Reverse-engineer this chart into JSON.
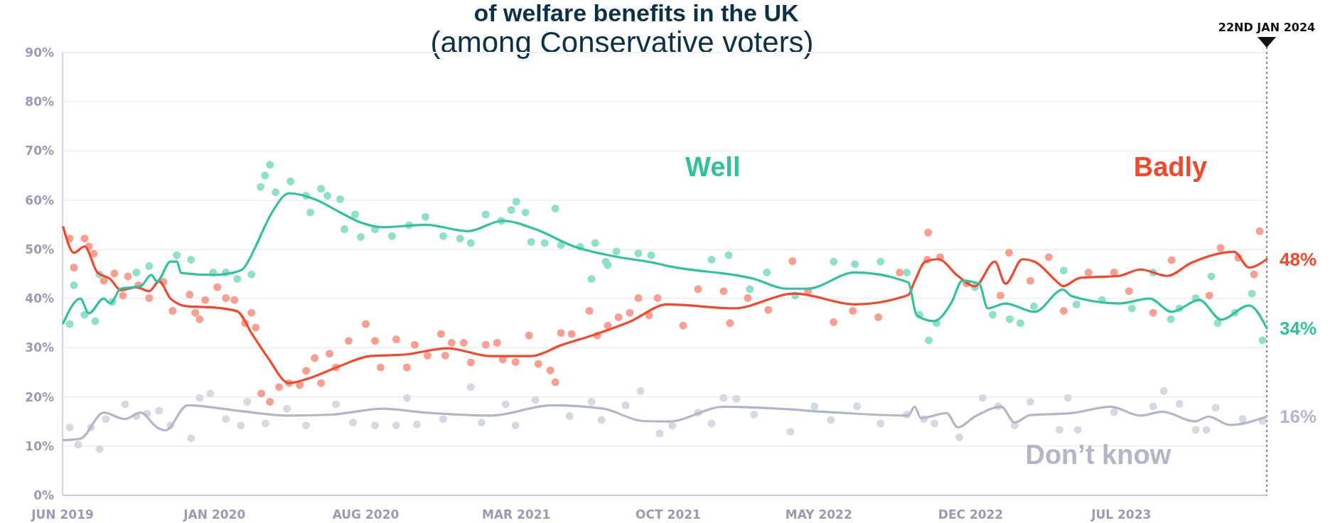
{
  "chart_data": {
    "type": "line",
    "title": "of welfare benefits in the UK",
    "subtitle": "(among Conservative voters)",
    "xlim": [
      "2019-06-01",
      "2024-01-22"
    ],
    "xticks": [
      {
        "value": "2019-06-01",
        "label": "JUN 2019"
      },
      {
        "value": "2020-01-01",
        "label": "JAN 2020"
      },
      {
        "value": "2020-08-01",
        "label": "AUG 2020"
      },
      {
        "value": "2021-03-01",
        "label": "MAR 2021"
      },
      {
        "value": "2021-10-01",
        "label": "OCT 2021"
      },
      {
        "value": "2022-05-01",
        "label": "MAY 2022"
      },
      {
        "value": "2022-12-01",
        "label": "DEC 2022"
      },
      {
        "value": "2023-07-01",
        "label": "JUL 2023"
      }
    ],
    "ylim": [
      0,
      90
    ],
    "yticks": [
      {
        "value": 0,
        "label": "0%"
      },
      {
        "value": 10,
        "label": "10%"
      },
      {
        "value": 20,
        "label": "20%"
      },
      {
        "value": 30,
        "label": "30%"
      },
      {
        "value": 40,
        "label": "40%"
      },
      {
        "value": 50,
        "label": "50%"
      },
      {
        "value": 60,
        "label": "60%"
      },
      {
        "value": 70,
        "label": "70%"
      },
      {
        "value": 80,
        "label": "80%"
      },
      {
        "value": 90,
        "label": "90%"
      }
    ],
    "grid": "y",
    "ref_lines": [
      {
        "axis": "x",
        "value": "2024-01-22",
        "label": "22ND JAN 2024",
        "color": "#5a5a70",
        "line_style": "dotted"
      }
    ],
    "annotations": [
      {
        "text": "48%",
        "x": "2024-01-22",
        "y": 48
      },
      {
        "text": "34%",
        "x": "2024-01-22",
        "y": 34
      },
      {
        "text": "16%",
        "x": "2024-01-22",
        "y": 16
      }
    ],
    "series": [
      {
        "type": "scatter",
        "marker": "circle",
        "color": "#d6d9e2",
        "x": [
          "2019-06-11",
          "2019-06-23",
          "2019-07-23",
          "2019-07-11",
          "2019-08-01",
          "2019-08-28",
          "2019-09-13",
          "2019-09-28",
          "2019-10-15",
          "2019-10-31",
          "2019-11-29",
          "2019-12-11",
          "2019-12-26",
          "2020-01-17",
          "2020-02-07",
          "2020-02-16",
          "2020-03-13",
          "2020-04-12",
          "2020-05-09",
          "2020-06-20",
          "2020-07-14",
          "2020-08-14",
          "2020-09-13",
          "2020-09-28",
          "2020-10-12",
          "2020-11-18",
          "2020-12-27",
          "2021-01-11",
          "2021-02-14",
          "2021-02-28",
          "2021-03-28",
          "2021-05-15",
          "2021-06-15",
          "2021-06-29",
          "2021-08-02",
          "2021-08-23",
          "2021-09-19",
          "2021-10-07",
          "2021-11-12",
          "2021-12-01",
          "2021-12-18",
          "2022-01-05",
          "2022-01-30",
          "2022-03-22",
          "2022-04-25",
          "2022-05-18",
          "2022-06-24",
          "2022-07-27",
          "2022-09-02",
          "2022-09-26",
          "2022-10-11",
          "2022-11-15",
          "2022-12-18",
          "2023-01-09",
          "2023-02-01",
          "2023-02-23",
          "2023-04-05",
          "2023-04-17",
          "2023-05-01",
          "2023-06-21",
          "2023-08-15",
          "2023-08-30",
          "2023-09-21",
          "2023-10-14",
          "2023-10-29",
          "2023-11-11",
          "2023-12-19",
          "2024-01-16"
        ],
        "values": [
          13.8,
          10.3,
          9.4,
          13.8,
          15.5,
          18.5,
          16.1,
          16.6,
          17.2,
          14.2,
          11.6,
          19.8,
          20.7,
          15.5,
          14.2,
          19,
          14.6,
          17.6,
          14.2,
          18.5,
          14.8,
          14.2,
          14.2,
          19.8,
          14.4,
          15.5,
          22,
          14.8,
          18.5,
          14.2,
          19.4,
          16.1,
          19,
          15.3,
          18.3,
          21.2,
          12.6,
          14.2,
          16.8,
          14.6,
          19.8,
          19.6,
          16.4,
          12.9,
          18.1,
          15.3,
          18.1,
          14.6,
          16.4,
          15.5,
          14.6,
          11.8,
          19.8,
          18.1,
          14.2,
          19,
          13.3,
          19.8,
          13.3,
          16.9,
          18.1,
          21.2,
          18.6,
          13.3,
          13.3,
          17.8,
          15.5,
          15.1
        ]
      },
      {
        "type": "scatter",
        "marker": "circle",
        "color": "#f7a092",
        "x": [
          "2019-06-11",
          "2019-06-17",
          "2019-07-02",
          "2019-07-08",
          "2019-07-15",
          "2019-07-29",
          "2019-08-13",
          "2019-08-25",
          "2019-09-01",
          "2019-09-16",
          "2019-10-01",
          "2019-10-21",
          "2019-11-03",
          "2019-11-27",
          "2019-12-05",
          "2019-12-11",
          "2019-12-19",
          "2020-01-05",
          "2020-01-17",
          "2020-01-29",
          "2020-02-13",
          "2020-02-22",
          "2020-02-28",
          "2020-03-07",
          "2020-03-19",
          "2020-04-01",
          "2020-04-15",
          "2020-04-30",
          "2020-05-09",
          "2020-05-21",
          "2020-05-30",
          "2020-06-11",
          "2020-06-20",
          "2020-07-08",
          "2020-08-01",
          "2020-08-14",
          "2020-08-22",
          "2020-09-13",
          "2020-09-28",
          "2020-10-09",
          "2020-10-27",
          "2020-11-15",
          "2020-11-21",
          "2020-11-30",
          "2020-12-17",
          "2020-12-27",
          "2021-01-17",
          "2021-02-02",
          "2021-02-10",
          "2021-02-28",
          "2021-03-19",
          "2021-04-01",
          "2021-04-18",
          "2021-04-25",
          "2021-05-03",
          "2021-05-18",
          "2021-06-12",
          "2021-06-23",
          "2021-07-08",
          "2021-07-23",
          "2021-08-08",
          "2021-08-20",
          "2021-09-04",
          "2021-09-16",
          "2021-10-22",
          "2021-11-12",
          "2021-12-18",
          "2021-12-27",
          "2022-01-21",
          "2022-02-19",
          "2022-03-25",
          "2022-04-16",
          "2022-05-22",
          "2022-06-18",
          "2022-07-24",
          "2022-08-23",
          "2022-10-01",
          "2022-10-02",
          "2022-10-19",
          "2022-11-25",
          "2023-01-12",
          "2023-01-24",
          "2023-02-23",
          "2023-03-21",
          "2023-04-11",
          "2023-05-16",
          "2023-06-21",
          "2023-07-12",
          "2023-08-15",
          "2023-09-10",
          "2023-11-02",
          "2023-11-18",
          "2023-12-13",
          "2024-01-04",
          "2024-01-12"
        ],
        "values": [
          52.2,
          46.3,
          52.2,
          50.6,
          49.1,
          43.6,
          45.1,
          40.6,
          44.5,
          42.7,
          40.1,
          43.4,
          37.5,
          40.8,
          37.1,
          35.8,
          39.7,
          42.3,
          40.1,
          39.7,
          35,
          37.1,
          34.1,
          20.7,
          19,
          22,
          22.8,
          22.4,
          25.3,
          27.9,
          22.8,
          28.8,
          26,
          31.4,
          34.8,
          31.4,
          26,
          31.7,
          26,
          30.6,
          28.4,
          32.8,
          28.4,
          31,
          31,
          27,
          30.6,
          31,
          27.6,
          27.1,
          32.5,
          26.7,
          25.4,
          23,
          33,
          32.8,
          37.5,
          32.5,
          34.5,
          36.2,
          37.1,
          40.1,
          36.6,
          40.1,
          34.5,
          41.9,
          41.5,
          35,
          40.1,
          37.7,
          47.6,
          41.5,
          35.2,
          37.5,
          36.2,
          45.3,
          47.9,
          53.4,
          48.4,
          43.1,
          40.6,
          49.3,
          43.6,
          48.4,
          37.5,
          45.3,
          45.3,
          41.5,
          37.1,
          47.8,
          40.6,
          50.3,
          48.3,
          44.9,
          53.7
        ]
      },
      {
        "type": "scatter",
        "marker": "circle",
        "color": "#8fe0c9",
        "x": [
          "2019-06-11",
          "2019-06-17",
          "2019-07-02",
          "2019-07-17",
          "2019-07-23",
          "2019-08-10",
          "2019-09-13",
          "2019-10-01",
          "2019-11-09",
          "2019-11-29",
          "2019-12-30",
          "2020-01-17",
          "2020-02-02",
          "2020-02-22",
          "2020-03-06",
          "2020-03-12",
          "2020-03-19",
          "2020-03-27",
          "2020-04-17",
          "2020-05-09",
          "2020-05-15",
          "2020-05-30",
          "2020-06-08",
          "2020-06-26",
          "2020-07-02",
          "2020-07-17",
          "2020-07-25",
          "2020-08-14",
          "2020-09-07",
          "2020-10-01",
          "2020-10-24",
          "2020-11-18",
          "2020-12-12",
          "2020-12-27",
          "2021-01-17",
          "2021-02-08",
          "2021-02-22",
          "2021-03-01",
          "2021-03-14",
          "2021-03-22",
          "2021-04-10",
          "2021-04-25",
          "2021-05-03",
          "2021-05-30",
          "2021-06-15",
          "2021-06-20",
          "2021-07-05",
          "2021-07-08",
          "2021-07-20",
          "2021-08-20",
          "2021-09-07",
          "2021-12-01",
          "2021-12-25",
          "2022-01-24",
          "2022-02-17",
          "2022-03-29",
          "2022-05-22",
          "2022-06-21",
          "2022-07-27",
          "2022-09-02",
          "2022-09-20",
          "2022-10-03",
          "2022-10-14",
          "2022-12-07",
          "2023-01-01",
          "2023-01-25",
          "2023-02-09",
          "2023-02-28",
          "2023-04-11",
          "2023-04-29",
          "2023-06-04",
          "2023-07-16",
          "2023-08-15",
          "2023-09-09",
          "2023-09-21",
          "2023-10-14",
          "2023-11-05",
          "2023-11-14",
          "2023-12-08",
          "2024-01-01",
          "2024-01-16"
        ],
        "values": [
          34.8,
          42.7,
          36.7,
          35.4,
          44.9,
          39.3,
          45.3,
          46.6,
          48.8,
          47.9,
          45.3,
          45.3,
          44,
          44.9,
          62.7,
          65,
          67.2,
          61.6,
          63.8,
          60.9,
          57.5,
          62.3,
          60.9,
          60.2,
          54.1,
          57.1,
          52.5,
          54.1,
          52.7,
          54.9,
          56.6,
          52.7,
          52.2,
          51.3,
          57.1,
          55.8,
          58,
          59.7,
          57.5,
          51.5,
          51.3,
          58.3,
          50.9,
          50.5,
          44,
          51.3,
          47.5,
          46.8,
          49.6,
          49.2,
          48.8,
          47.9,
          48.8,
          41.9,
          45.3,
          40.6,
          47.5,
          47,
          47.5,
          45.3,
          36.7,
          31.5,
          35,
          42.3,
          36.7,
          35.8,
          35,
          38.4,
          45.7,
          38.8,
          39.7,
          38,
          45.3,
          35.8,
          38,
          40.1,
          44.5,
          35,
          37.1,
          41,
          31.5
        ]
      },
      {
        "type": "line",
        "name": "Don’t know",
        "marker": "none",
        "line_style": "solid",
        "color": "#b2b6c6",
        "x": [
          "2019-06-02",
          "2019-06-26",
          "2019-07-29",
          "2019-08-28",
          "2019-09-19",
          "2019-10-12",
          "2019-10-24",
          "2019-11-24",
          "2020-02-02",
          "2020-04-15",
          "2020-06-14",
          "2020-08-25",
          "2020-10-24",
          "2021-01-23",
          "2021-04-21",
          "2021-07-02",
          "2021-08-26",
          "2021-10-01",
          "2021-12-19",
          "2022-03-05",
          "2022-05-28",
          "2022-09-04",
          "2022-09-13",
          "2022-09-22",
          "2022-10-28",
          "2022-11-13",
          "2022-12-07",
          "2023-01-13",
          "2023-02-01",
          "2023-02-23",
          "2023-04-22",
          "2023-06-16",
          "2023-07-28",
          "2023-08-28",
          "2023-10-13",
          "2023-11-01",
          "2023-12-01",
          "2024-01-22"
        ],
        "values": [
          11.2,
          11.5,
          16.8,
          15.5,
          16.8,
          13.8,
          13.2,
          18.3,
          17.2,
          16.2,
          16.4,
          17.6,
          16.8,
          16.2,
          18.3,
          17.6,
          15.1,
          15,
          18,
          17.6,
          16.8,
          16.2,
          18,
          15.7,
          16.7,
          13.8,
          16,
          18,
          14.8,
          16.3,
          16.7,
          18,
          16.2,
          17,
          15,
          16,
          14.3,
          16
        ]
      },
      {
        "type": "line",
        "name": "Badly",
        "marker": "none",
        "line_style": "solid",
        "color": "#f4472c",
        "x": [
          "2019-06-02",
          "2019-06-17",
          "2019-07-02",
          "2019-07-20",
          "2019-08-07",
          "2019-08-22",
          "2019-09-13",
          "2019-10-01",
          "2019-10-15",
          "2019-10-31",
          "2019-11-24",
          "2019-12-30",
          "2020-02-02",
          "2020-02-22",
          "2020-03-16",
          "2020-04-15",
          "2020-05-09",
          "2020-06-26",
          "2020-08-07",
          "2020-09-25",
          "2020-11-24",
          "2021-01-23",
          "2021-03-22",
          "2021-05-03",
          "2021-06-20",
          "2021-08-08",
          "2021-09-30",
          "2022-01-01",
          "2022-03-28",
          "2022-06-21",
          "2022-09-04",
          "2022-09-13",
          "2022-09-28",
          "2022-10-16",
          "2022-11-13",
          "2022-12-07",
          "2023-01-04",
          "2023-01-19",
          "2023-02-12",
          "2023-03-01",
          "2023-04-01",
          "2023-04-10",
          "2023-05-04",
          "2023-06-28",
          "2023-07-28",
          "2023-09-04",
          "2023-10-07",
          "2023-12-07",
          "2023-12-28",
          "2024-01-22"
        ],
        "values": [
          54.5,
          49.3,
          50.6,
          45.3,
          44,
          41.7,
          42.3,
          41.5,
          43.5,
          40,
          38.4,
          38.2,
          37.4,
          33,
          28,
          22.8,
          23.6,
          26.3,
          28.3,
          28.6,
          29.9,
          28.3,
          28.3,
          30.5,
          32.7,
          35.3,
          38.8,
          38,
          41,
          38.8,
          40.7,
          43.5,
          47.5,
          48,
          44.6,
          42.5,
          47.5,
          43,
          48,
          47.5,
          43.5,
          42.5,
          44.2,
          44.6,
          45.9,
          44.6,
          47.2,
          49.5,
          46.3,
          48
        ]
      },
      {
        "type": "line",
        "name": "Well",
        "marker": "none",
        "line_style": "solid",
        "color": "#30c29b",
        "x": [
          "2019-06-02",
          "2019-06-26",
          "2019-07-08",
          "2019-07-29",
          "2019-08-07",
          "2019-08-22",
          "2019-09-19",
          "2019-10-04",
          "2019-10-12",
          "2019-10-31",
          "2019-11-09",
          "2019-11-15",
          "2019-12-30",
          "2020-01-26",
          "2020-02-10",
          "2020-02-22",
          "2020-02-28",
          "2020-03-22",
          "2020-04-15",
          "2020-05-21",
          "2020-06-26",
          "2020-07-26",
          "2020-08-25",
          "2020-10-24",
          "2020-12-23",
          "2021-02-10",
          "2021-03-28",
          "2021-05-21",
          "2021-07-20",
          "2021-09-13",
          "2021-10-01",
          "2022-01-30",
          "2022-03-16",
          "2022-04-15",
          "2022-06-21",
          "2022-09-04",
          "2022-09-16",
          "2022-10-10",
          "2022-11-04",
          "2022-11-19",
          "2022-12-13",
          "2022-12-25",
          "2023-01-19",
          "2023-03-01",
          "2023-04-10",
          "2023-04-22",
          "2023-06-28",
          "2023-08-10",
          "2023-09-10",
          "2023-10-19",
          "2023-11-19",
          "2023-12-28",
          "2024-01-22"
        ],
        "values": [
          35,
          40,
          37,
          40,
          39,
          42,
          42.5,
          44.8,
          43.5,
          47.5,
          47.5,
          45.2,
          44.8,
          45.2,
          46,
          48.8,
          50.6,
          57.5,
          61.4,
          60.2,
          57.5,
          55.4,
          54.5,
          55,
          53.7,
          55.8,
          54.1,
          50.6,
          48.5,
          47.2,
          46.6,
          44,
          42,
          42,
          45.3,
          43.3,
          36.6,
          35.4,
          39.2,
          43.6,
          43,
          38,
          39,
          37.3,
          41.8,
          40.5,
          39,
          40,
          37.3,
          39.7,
          35.7,
          38.6,
          34
        ]
      }
    ]
  }
}
